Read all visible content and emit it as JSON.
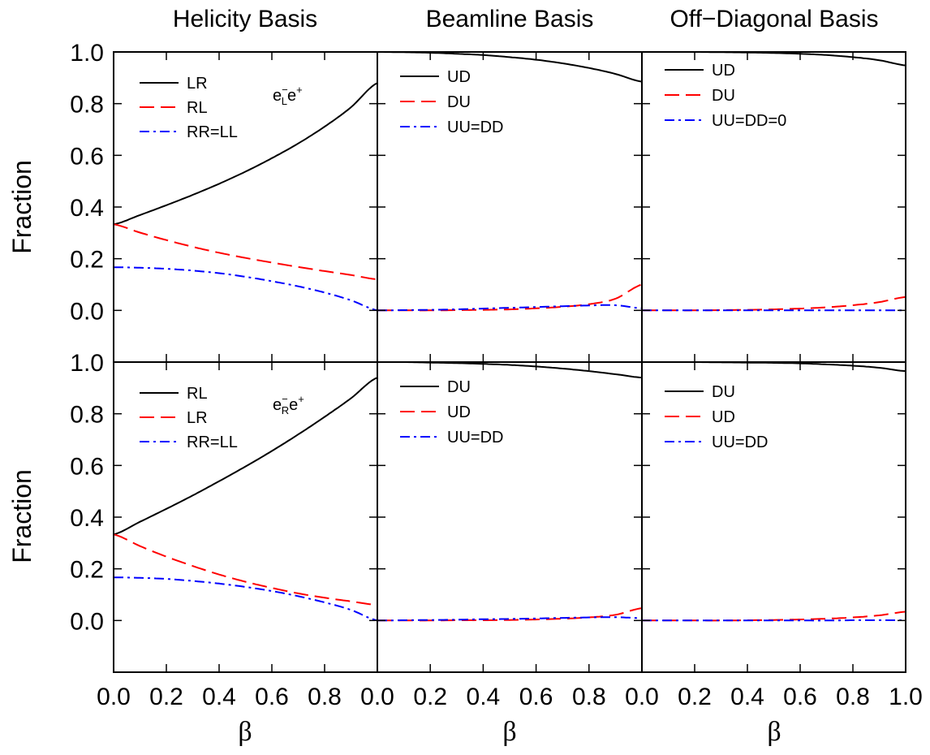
{
  "colors": {
    "black": "#000000",
    "red": "#ff0000",
    "blue": "#0000ff",
    "frame": "#000000"
  },
  "column_titles": [
    "Helicity Basis",
    "Beamline Basis",
    "Off−Diagonal Basis"
  ],
  "ylabel": "Fraction",
  "xlabel": "β",
  "y_ticks": [
    "1.0",
    "0.8",
    "0.6",
    "0.4",
    "0.2",
    "0.0"
  ],
  "x_ticks": [
    "0.0",
    "0.2",
    "0.4",
    "0.6",
    "0.8"
  ],
  "x_tick_last": "1.0",
  "annotations": {
    "top": {
      "base": "e",
      "sup1": "−",
      "sub": "L",
      "base2": "e",
      "sup2": "+"
    },
    "bottom": {
      "base": "e",
      "sup1": "−",
      "sub": "R",
      "base2": "e",
      "sup2": "+"
    }
  },
  "chart_data": [
    {
      "type": "line",
      "row": 0,
      "col": 0,
      "xlim": [
        0,
        1
      ],
      "ylim": [
        -0.2,
        1.0
      ],
      "x": [
        0,
        0.1,
        0.2,
        0.3,
        0.4,
        0.5,
        0.6,
        0.7,
        0.8,
        0.9,
        1.0
      ],
      "series": [
        {
          "name": "LR",
          "color": "#000000",
          "style": "solid",
          "values": [
            0.333,
            0.369,
            0.407,
            0.447,
            0.49,
            0.537,
            0.589,
            0.646,
            0.711,
            0.786,
            0.88
          ]
        },
        {
          "name": "RL",
          "color": "#ff0000",
          "style": "dashed",
          "values": [
            0.333,
            0.301,
            0.272,
            0.246,
            0.223,
            0.203,
            0.185,
            0.168,
            0.152,
            0.137,
            0.12
          ]
        },
        {
          "name": "RR=LL",
          "color": "#0000ff",
          "style": "dashdot",
          "values": [
            0.167,
            0.165,
            0.161,
            0.154,
            0.144,
            0.13,
            0.113,
            0.093,
            0.069,
            0.039,
            0.0
          ]
        }
      ]
    },
    {
      "type": "line",
      "row": 0,
      "col": 1,
      "xlim": [
        0,
        1
      ],
      "ylim": [
        -0.2,
        1.0
      ],
      "x": [
        0,
        0.1,
        0.2,
        0.3,
        0.4,
        0.5,
        0.6,
        0.7,
        0.8,
        0.9,
        1.0
      ],
      "series": [
        {
          "name": "UD",
          "color": "#000000",
          "style": "solid",
          "values": [
            1.0,
            0.999,
            0.997,
            0.993,
            0.988,
            0.98,
            0.97,
            0.956,
            0.938,
            0.915,
            0.885
          ]
        },
        {
          "name": "DU",
          "color": "#ff0000",
          "style": "dashed",
          "values": [
            0.0,
            0.0,
            0.0,
            0.001,
            0.002,
            0.004,
            0.008,
            0.014,
            0.024,
            0.045,
            0.1
          ]
        },
        {
          "name": "UU=DD",
          "color": "#0000ff",
          "style": "dashdot",
          "values": [
            0.0,
            0.001,
            0.002,
            0.004,
            0.007,
            0.01,
            0.013,
            0.016,
            0.019,
            0.02,
            0.008
          ]
        }
      ]
    },
    {
      "type": "line",
      "row": 0,
      "col": 2,
      "xlim": [
        0,
        1
      ],
      "ylim": [
        -0.2,
        1.0
      ],
      "x": [
        0,
        0.1,
        0.2,
        0.3,
        0.4,
        0.5,
        0.6,
        0.7,
        0.8,
        0.9,
        1.0
      ],
      "series": [
        {
          "name": "UD",
          "color": "#000000",
          "style": "solid",
          "values": [
            1.0,
            1.0,
            1.0,
            0.999,
            0.998,
            0.996,
            0.993,
            0.988,
            0.98,
            0.968,
            0.948
          ]
        },
        {
          "name": "DU",
          "color": "#ff0000",
          "style": "dashed",
          "values": [
            0.0,
            0.0,
            0.0,
            0.001,
            0.002,
            0.004,
            0.007,
            0.012,
            0.02,
            0.032,
            0.052
          ]
        },
        {
          "name": "UU=DD=0",
          "color": "#0000ff",
          "style": "dashdot",
          "values": [
            0.0,
            0.0,
            0.0,
            0.0,
            0.0,
            0.0,
            0.0,
            0.0,
            0.0,
            0.0,
            0.0
          ]
        }
      ]
    },
    {
      "type": "line",
      "row": 1,
      "col": 0,
      "xlim": [
        0,
        1
      ],
      "ylim": [
        -0.2,
        1.0
      ],
      "x": [
        0,
        0.1,
        0.2,
        0.3,
        0.4,
        0.5,
        0.6,
        0.7,
        0.8,
        0.9,
        1.0
      ],
      "series": [
        {
          "name": "RL",
          "color": "#000000",
          "style": "solid",
          "values": [
            0.333,
            0.382,
            0.432,
            0.484,
            0.539,
            0.596,
            0.656,
            0.72,
            0.788,
            0.86,
            0.94
          ]
        },
        {
          "name": "LR",
          "color": "#ff0000",
          "style": "dashed",
          "values": [
            0.333,
            0.288,
            0.247,
            0.211,
            0.178,
            0.15,
            0.126,
            0.105,
            0.088,
            0.074,
            0.06
          ]
        },
        {
          "name": "RR=LL",
          "color": "#0000ff",
          "style": "dashdot",
          "values": [
            0.167,
            0.165,
            0.161,
            0.153,
            0.143,
            0.13,
            0.114,
            0.094,
            0.07,
            0.041,
            0.0
          ]
        }
      ]
    },
    {
      "type": "line",
      "row": 1,
      "col": 1,
      "xlim": [
        0,
        1
      ],
      "ylim": [
        -0.2,
        1.0
      ],
      "x": [
        0,
        0.1,
        0.2,
        0.3,
        0.4,
        0.5,
        0.6,
        0.7,
        0.8,
        0.9,
        1.0
      ],
      "series": [
        {
          "name": "DU",
          "color": "#000000",
          "style": "solid",
          "values": [
            1.0,
            1.0,
            0.998,
            0.996,
            0.993,
            0.989,
            0.983,
            0.975,
            0.965,
            0.953,
            0.94
          ]
        },
        {
          "name": "UD",
          "color": "#ff0000",
          "style": "dashed",
          "values": [
            0.0,
            0.0,
            0.0,
            0.001,
            0.001,
            0.002,
            0.004,
            0.007,
            0.012,
            0.022,
            0.048
          ]
        },
        {
          "name": "UU=DD",
          "color": "#0000ff",
          "style": "dashdot",
          "values": [
            0.0,
            0.001,
            0.002,
            0.003,
            0.005,
            0.006,
            0.008,
            0.01,
            0.012,
            0.013,
            0.009
          ]
        }
      ]
    },
    {
      "type": "line",
      "row": 1,
      "col": 2,
      "xlim": [
        0,
        1
      ],
      "ylim": [
        -0.2,
        1.0
      ],
      "x": [
        0,
        0.1,
        0.2,
        0.3,
        0.4,
        0.5,
        0.6,
        0.7,
        0.8,
        0.9,
        1.0
      ],
      "series": [
        {
          "name": "DU",
          "color": "#000000",
          "style": "solid",
          "values": [
            1.0,
            1.0,
            1.0,
            0.999,
            0.998,
            0.997,
            0.995,
            0.991,
            0.986,
            0.978,
            0.965
          ]
        },
        {
          "name": "UD",
          "color": "#ff0000",
          "style": "dashed",
          "values": [
            0.0,
            0.0,
            0.0,
            0.0,
            0.001,
            0.002,
            0.004,
            0.007,
            0.012,
            0.02,
            0.034
          ]
        },
        {
          "name": "UU=DD",
          "color": "#0000ff",
          "style": "dashdot",
          "values": [
            0.0,
            0.0,
            0.0,
            0.0,
            0.0,
            0.0,
            0.0,
            0.0,
            0.001,
            0.001,
            0.001
          ]
        }
      ]
    }
  ]
}
